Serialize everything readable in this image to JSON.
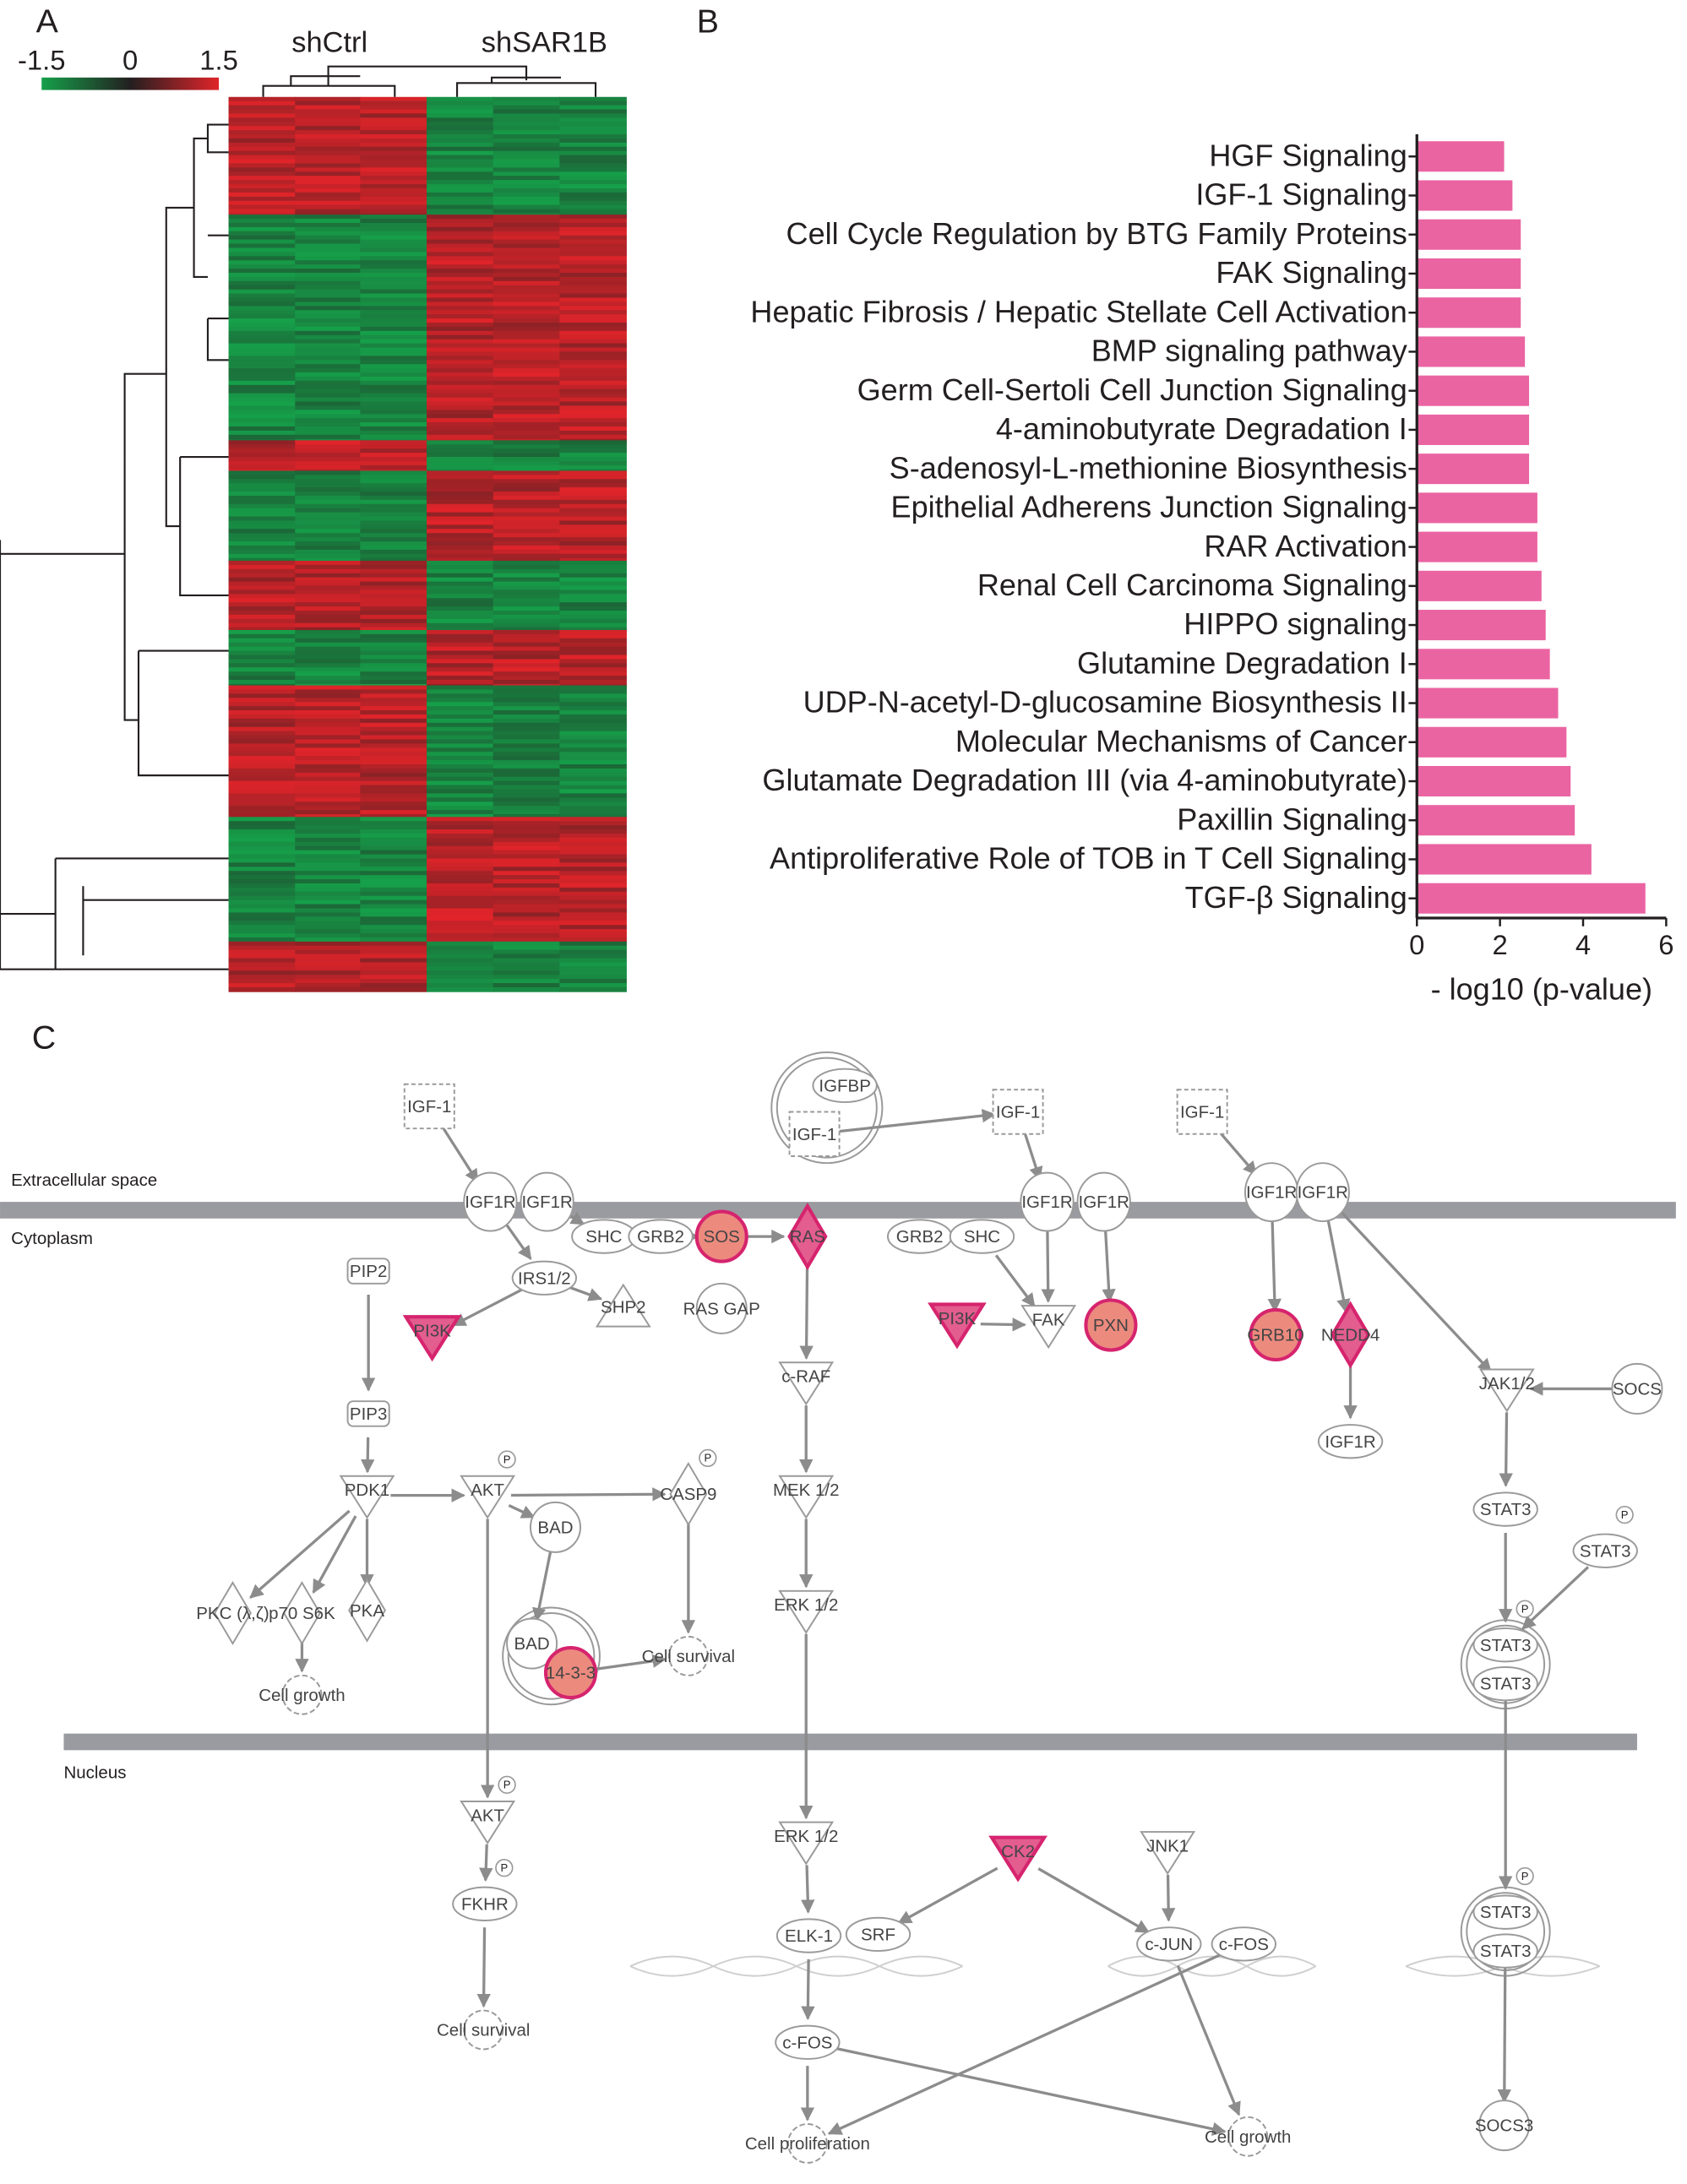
{
  "panel_labels": [
    "A",
    "B",
    "C"
  ],
  "heatmap": {
    "groups": [
      "shCtrl",
      "shSAR1B"
    ],
    "colorbar_ticks": [
      -1.5,
      0,
      1.5
    ],
    "colors": [
      "#16a04a",
      "#231f20",
      "#e0242a"
    ]
  },
  "chart_data": {
    "type": "bar",
    "orientation": "horizontal",
    "categories": [
      "HGF Signaling",
      "IGF-1 Signaling",
      "Cell Cycle Regulation by BTG Family Proteins",
      "FAK Signaling",
      "Hepatic Fibrosis / Hepatic Stellate Cell Activation",
      "BMP signaling pathway",
      "Germ Cell-Sertoli Cell Junction Signaling",
      "4-aminobutyrate Degradation I",
      "S-adenosyl-L-methionine Biosynthesis",
      "Epithelial Adherens Junction Signaling",
      "RAR Activation",
      "Renal Cell Carcinoma Signaling",
      "HIPPO signaling",
      "Glutamine Degradation I",
      "UDP-N-acetyl-D-glucosamine Biosynthesis II",
      "Molecular Mechanisms of Cancer",
      "Glutamate Degradation III (via 4-aminobutyrate)",
      "Paxillin Signaling",
      "Antiproliferative Role of TOB in T Cell Signaling",
      "TGF-β Signaling"
    ],
    "values": [
      2.1,
      2.3,
      2.5,
      2.5,
      2.5,
      2.6,
      2.7,
      2.7,
      2.7,
      2.9,
      2.9,
      3.0,
      3.1,
      3.2,
      3.4,
      3.6,
      3.7,
      3.8,
      4.2,
      5.5
    ],
    "color": "#ea64a2",
    "xlim": [
      0,
      6
    ],
    "xticks": [
      0,
      2,
      4,
      6
    ],
    "xlabel": "- log10 (p-value)"
  },
  "diagram": {
    "compartments": [
      "Extracellular space",
      "Cytoplasm",
      "Nucleus"
    ],
    "phospho_label": "P",
    "nodes": [
      {
        "label": "IGF-1"
      },
      {
        "label": "IGFBP"
      },
      {
        "label": "IGF-1"
      },
      {
        "label": "IGF-1"
      },
      {
        "label": "IGF-1"
      },
      {
        "label": "IGF1R"
      },
      {
        "label": "IGF1R"
      },
      {
        "label": "SHC"
      },
      {
        "label": "GRB2"
      },
      {
        "label": "SOS"
      },
      {
        "label": "RAS"
      },
      {
        "label": "GRB2"
      },
      {
        "label": "SHC"
      },
      {
        "label": "IGF1R"
      },
      {
        "label": "IGF1R"
      },
      {
        "label": "IGF1R"
      },
      {
        "label": "IGF1R"
      },
      {
        "label": "PIP2"
      },
      {
        "label": "IRS1/2"
      },
      {
        "label": "SHP2"
      },
      {
        "label": "RAS GAP"
      },
      {
        "label": "PI3K"
      },
      {
        "label": "PI3K"
      },
      {
        "label": "FAK"
      },
      {
        "label": "PXN"
      },
      {
        "label": "GRB10"
      },
      {
        "label": "NEDD4"
      },
      {
        "label": "c-RAF"
      },
      {
        "label": "JAK1/2"
      },
      {
        "label": "SOCS"
      },
      {
        "label": "IGF1R"
      },
      {
        "label": "PIP3"
      },
      {
        "label": "PDK1"
      },
      {
        "label": "AKT"
      },
      {
        "label": "BAD"
      },
      {
        "label": "CASP9"
      },
      {
        "label": "MEK 1/2"
      },
      {
        "label": "STAT3"
      },
      {
        "label": "STAT3"
      },
      {
        "label": "ERK 1/2"
      },
      {
        "label": "PKC (λ,ζ)"
      },
      {
        "label": "p70 S6K"
      },
      {
        "label": "PKA"
      },
      {
        "label": "BAD"
      },
      {
        "label": "14-3-3"
      },
      {
        "label": "Cell survival"
      },
      {
        "label": "Cell growth"
      },
      {
        "label": "STAT3"
      },
      {
        "label": "STAT3"
      },
      {
        "label": "AKT"
      },
      {
        "label": "ERK 1/2"
      },
      {
        "label": "CK2"
      },
      {
        "label": "JNK1"
      },
      {
        "label": "FKHR"
      },
      {
        "label": "ELK-1"
      },
      {
        "label": "SRF"
      },
      {
        "label": "c-JUN"
      },
      {
        "label": "c-FOS"
      },
      {
        "label": "STAT3"
      },
      {
        "label": "STAT3"
      },
      {
        "label": "Cell survival"
      },
      {
        "label": "c-FOS"
      },
      {
        "label": "Cell proliferation"
      },
      {
        "label": "Cell growth"
      },
      {
        "label": "SOCS3"
      }
    ]
  }
}
